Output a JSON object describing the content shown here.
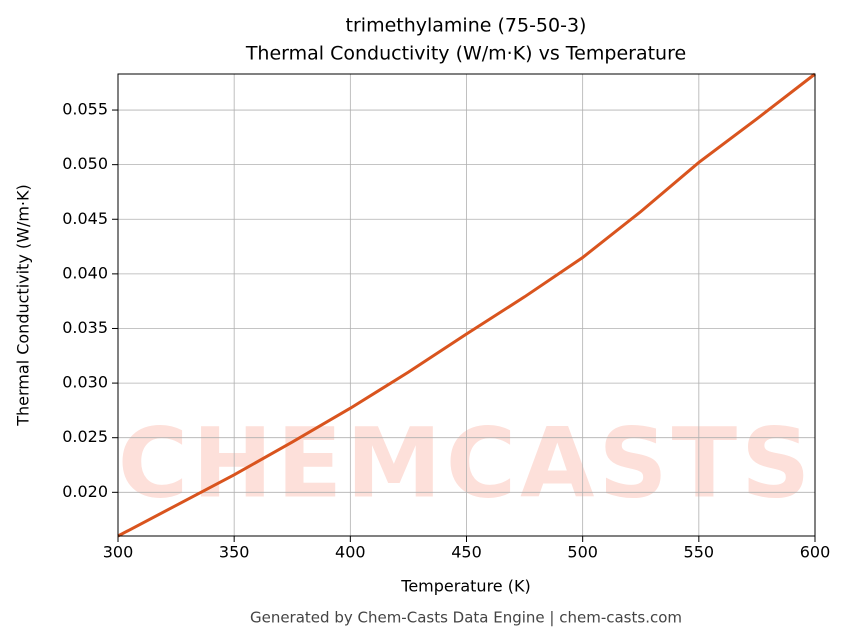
{
  "chart_data": {
    "type": "line",
    "title": "trimethylamine (75-50-3)",
    "subtitle": "Thermal Conductivity (W/m·K) vs Temperature",
    "xlabel": "Temperature (K)",
    "ylabel": "Thermal Conductivity (W/m·K)",
    "footer": "Generated by Chem-Casts Data Engine | chem-casts.com",
    "watermark": "CHEMCASTS",
    "x": [
      300,
      325,
      350,
      375,
      400,
      425,
      450,
      475,
      500,
      525,
      550,
      575,
      600
    ],
    "series": [
      {
        "name": "Thermal Conductivity",
        "color": "#d9541e",
        "values": [
          0.016,
          0.0188,
          0.0216,
          0.0246,
          0.0277,
          0.031,
          0.0345,
          0.0379,
          0.0415,
          0.0457,
          0.0502,
          0.0542,
          0.0583
        ]
      }
    ],
    "xlim": [
      300,
      600
    ],
    "xticks": [
      300,
      350,
      400,
      450,
      500,
      550,
      600
    ],
    "ylim": [
      0.016,
      0.0583
    ],
    "yticks": [
      {
        "value": 0.02,
        "label": "0.020"
      },
      0.025,
      {
        "value": 0.03,
        "label": "0.030"
      },
      0.035,
      {
        "value": 0.04,
        "label": "0.040"
      },
      0.045,
      {
        "value": 0.05,
        "label": "0.050"
      },
      0.055
    ],
    "grid": true
  }
}
